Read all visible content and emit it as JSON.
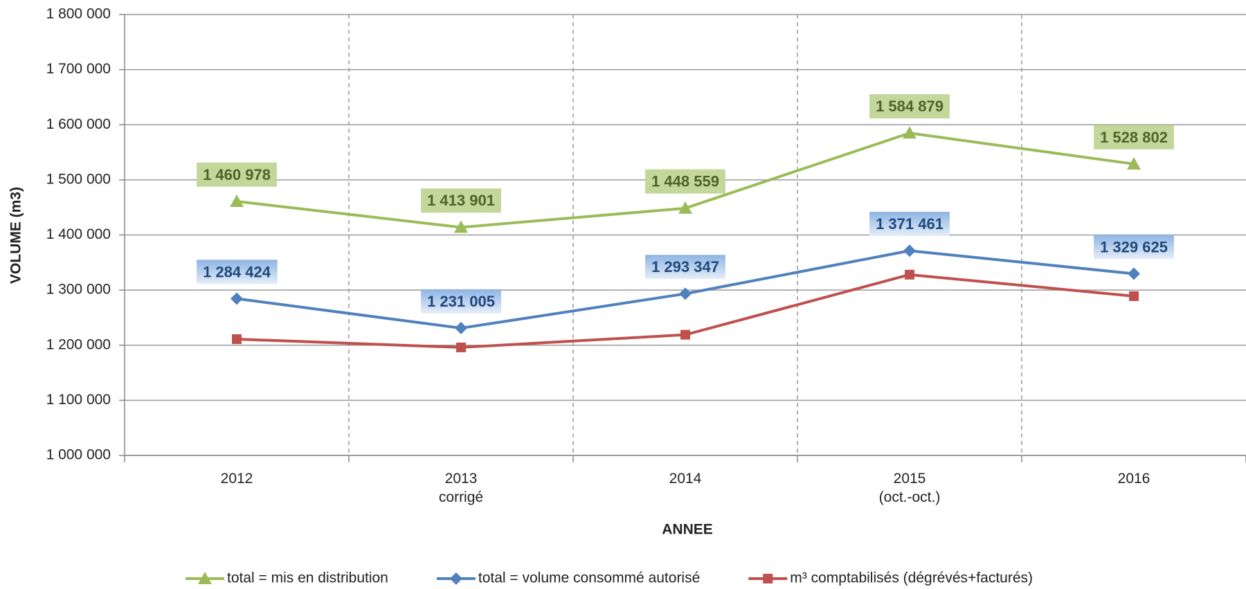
{
  "chart_data": {
    "type": "line",
    "y_label": "VOLUME (m3)",
    "x_label": "ANNEE",
    "categories": [
      "2012",
      "2013\ncorrigé",
      "2014",
      "2015\n(oct.-oct.)",
      "2016"
    ],
    "ylim": [
      1000000,
      1800000
    ],
    "yticks": [
      {
        "value": 1000000,
        "label": "1 000 000"
      },
      {
        "value": 1100000,
        "label": "1 100 000"
      },
      {
        "value": 1200000,
        "label": "1 200 000"
      },
      {
        "value": 1300000,
        "label": "1 300 000"
      },
      {
        "value": 1400000,
        "label": "1 400 000"
      },
      {
        "value": 1500000,
        "label": "1 500 000"
      },
      {
        "value": 1600000,
        "label": "1 600 000"
      },
      {
        "value": 1700000,
        "label": "1 700 000"
      },
      {
        "value": 1800000,
        "label": "1 800 000"
      }
    ],
    "grid": true,
    "legend": "bottom",
    "series": [
      {
        "name": "total = mis en distribution",
        "color": "#9bbb59",
        "marker": "triangle",
        "values": [
          1460978,
          1413901,
          1448559,
          1584879,
          1528802
        ],
        "value_labels": [
          "1 460 978",
          "1 413 901",
          "1 448 559",
          "1 584 879",
          "1 528 802"
        ]
      },
      {
        "name": "total = volume consommé autorisé",
        "color": "#4f81bd",
        "marker": "diamond",
        "values": [
          1284424,
          1231005,
          1293347,
          1371461,
          1329625
        ],
        "value_labels": [
          "1 284 424",
          "1 231 005",
          "1 293 347",
          "1 371 461",
          "1 329 625"
        ]
      },
      {
        "name": "m³ comptabilisés (dégrévés+facturés)",
        "color": "#c0504d",
        "marker": "square",
        "values": [
          1211000,
          1196000,
          1219000,
          1328000,
          1289000
        ]
      }
    ]
  }
}
